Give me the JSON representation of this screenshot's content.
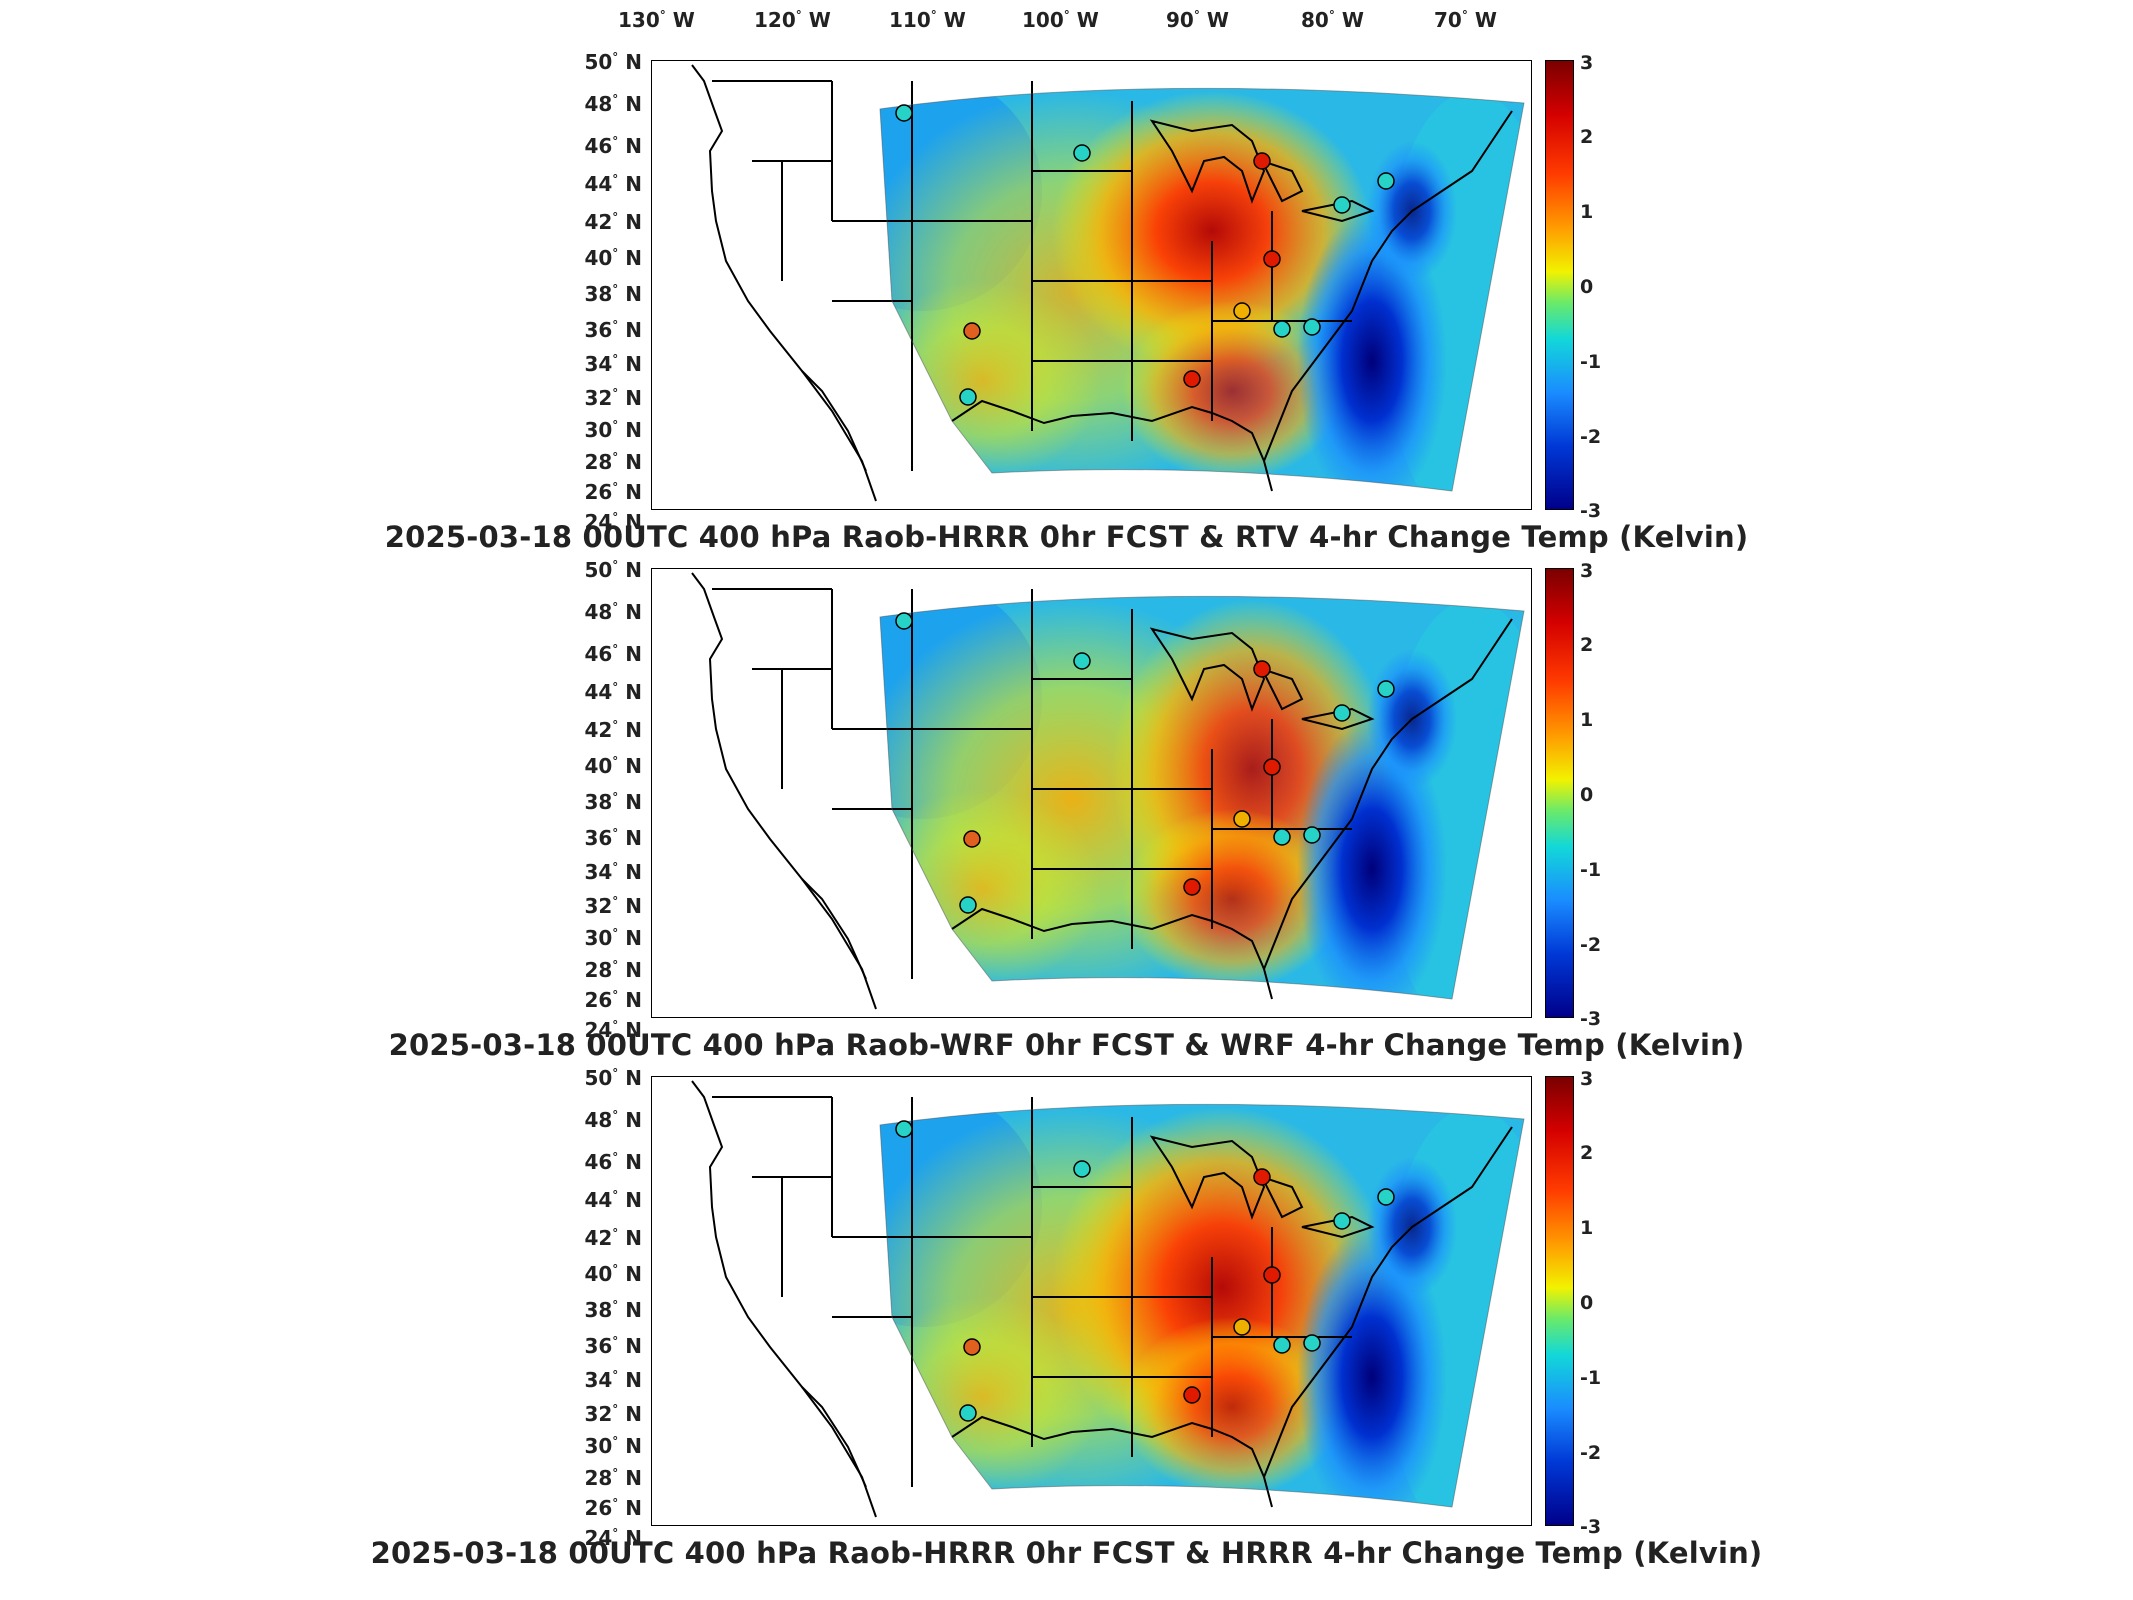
{
  "lon_labels": [
    "130",
    "120",
    "110",
    "100",
    "90",
    "80",
    "70"
  ],
  "lon_suffix": "W",
  "lat_labels": [
    "50",
    "48",
    "46",
    "44",
    "42",
    "40",
    "38",
    "36",
    "34",
    "32",
    "30",
    "28",
    "26",
    "24"
  ],
  "lat_suffix": "N",
  "colorbar_ticks": [
    "3",
    "2",
    "1",
    "0",
    "-1",
    "-2",
    "-3"
  ],
  "colorbar_range": [
    -3,
    3
  ],
  "panels": [
    {
      "title": "2025-03-18 00UTC 400 hPa Raob-HRRR 0hr FCST & RTV 4-hr Change Temp (Kelvin)"
    },
    {
      "title": "2025-03-18 00UTC 400 hPa Raob-WRF 0hr FCST & WRF 4-hr Change Temp (Kelvin)"
    },
    {
      "title": "2025-03-18 00UTC 400 hPa Raob-HRRR 0hr FCST & HRRR 4-hr Change Temp (Kelvin)"
    }
  ],
  "colors": {
    "warm": "#e01a00",
    "cold": "#0018b0",
    "neutral": "#27d3c6"
  }
}
